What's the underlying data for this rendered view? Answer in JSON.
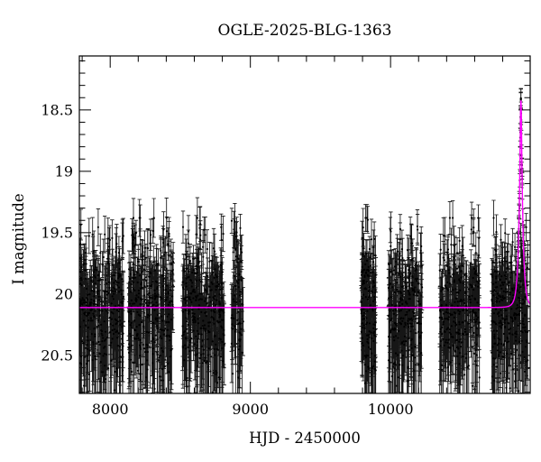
{
  "title": "OGLE-2025-BLG-1363",
  "axes": {
    "xlabel": "HJD - 2450000",
    "ylabel": "I magnitude",
    "x_ticks": [
      {
        "value": 8000,
        "label": "8000"
      },
      {
        "value": 9000,
        "label": "9000"
      },
      {
        "value": 10000,
        "label": "10000"
      }
    ],
    "y_ticks": [
      {
        "value": 18.5,
        "label": "18.5"
      },
      {
        "value": 19.0,
        "label": "19"
      },
      {
        "value": 19.5,
        "label": "19.5"
      },
      {
        "value": 20.0,
        "label": "20"
      },
      {
        "value": 20.5,
        "label": "20.5"
      }
    ],
    "x_minor_step": 200,
    "y_minor_step": 0.1
  },
  "chart_data": {
    "type": "scatter",
    "title": "OGLE-2025-BLG-1363",
    "xlabel": "HJD - 2450000",
    "ylabel": "I magnitude",
    "x_range": [
      7780,
      10996
    ],
    "y_range": [
      18.06,
      20.81
    ],
    "y_inverted": true,
    "grid": false,
    "legend": "none",
    "baseline_mag": 20.11,
    "scatter_stats": {
      "mag_mean": 20.12,
      "mag_sigma": 0.3,
      "mag_brightest": 19.38,
      "mag_faintest": 20.83,
      "err_min": 0.1,
      "err_max": 0.38
    },
    "seasons": [
      {
        "t_start": 7785,
        "t_end": 8095,
        "n": 300
      },
      {
        "t_start": 8130,
        "t_end": 8450,
        "n": 310
      },
      {
        "t_start": 8515,
        "t_end": 8815,
        "n": 300
      },
      {
        "t_start": 8865,
        "t_end": 8950,
        "n": 70
      },
      {
        "t_start": 9790,
        "t_end": 9895,
        "n": 150
      },
      {
        "t_start": 9985,
        "t_end": 10225,
        "n": 250
      },
      {
        "t_start": 10350,
        "t_end": 10635,
        "n": 260
      },
      {
        "t_start": 10720,
        "t_end": 10980,
        "n": 270
      }
    ],
    "event_points": {
      "t_start": 10905,
      "t_end": 10955,
      "n": 45,
      "peak_mag": 18.43
    },
    "model": {
      "type": "paczynski",
      "t0": 10930,
      "tE": 25,
      "u0": 0.215,
      "baseline_mag": 20.11,
      "peak_mag": 18.42
    }
  },
  "style": {
    "background": "#ffffff",
    "frame_color": "#000000",
    "point_color": "#000000",
    "errorbar_color": "#161616",
    "model_color": "#ff00ff",
    "text_color": "#000000"
  }
}
